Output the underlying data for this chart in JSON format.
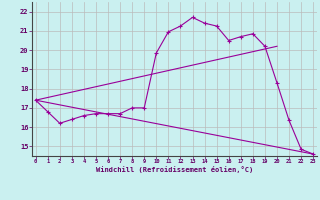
{
  "xlabel": "Windchill (Refroidissement éolien,°C)",
  "background_color": "#caf0f0",
  "line_color": "#990099",
  "grid_color": "#bbbbbb",
  "x_ticks": [
    0,
    1,
    2,
    3,
    4,
    5,
    6,
    7,
    8,
    9,
    10,
    11,
    12,
    13,
    14,
    15,
    16,
    17,
    18,
    19,
    20,
    21,
    22,
    23
  ],
  "y_ticks": [
    15,
    16,
    17,
    18,
    19,
    20,
    21,
    22
  ],
  "ylim": [
    14.5,
    22.5
  ],
  "xlim": [
    -0.3,
    23.3
  ],
  "series1_x": [
    0,
    1,
    2,
    3,
    4,
    5,
    6,
    7,
    8,
    9,
    10,
    11,
    12,
    13,
    14,
    15,
    16,
    17,
    18,
    19,
    20,
    21,
    22,
    23
  ],
  "series1_y": [
    17.4,
    16.8,
    16.2,
    16.4,
    16.6,
    16.7,
    16.7,
    16.7,
    17.0,
    17.0,
    19.85,
    20.95,
    21.25,
    21.7,
    21.4,
    21.25,
    20.5,
    20.7,
    20.85,
    20.2,
    18.3,
    16.35,
    14.85,
    14.6
  ],
  "series2_x": [
    0,
    23
  ],
  "series2_y": [
    17.4,
    14.6
  ],
  "series3_x": [
    0,
    20
  ],
  "series3_y": [
    17.4,
    20.2
  ]
}
